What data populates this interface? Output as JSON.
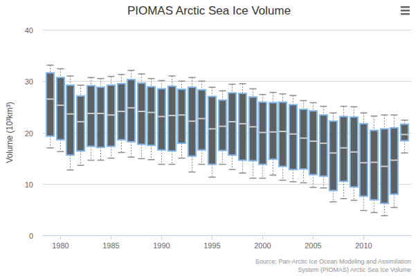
{
  "chart_data": {
    "type": "boxplot",
    "title": "PIOMAS Arctic Sea Ice Volume",
    "y_label": "Volume (10³km³)",
    "source": [
      "Source: Pan-Arctic Ice Ocean Modeling and Assimilation",
      "System (PIOMAS) Arctic Sea Ice Volume"
    ],
    "x": [
      1979,
      1980,
      1981,
      1982,
      1983,
      1984,
      1985,
      1986,
      1987,
      1988,
      1989,
      1990,
      1991,
      1992,
      1993,
      1994,
      1995,
      1996,
      1997,
      1998,
      1999,
      2000,
      2001,
      2002,
      2003,
      2004,
      2005,
      2006,
      2007,
      2008,
      2009,
      2010,
      2011,
      2012,
      2013,
      2014
    ],
    "high": [
      33.1,
      32.4,
      31.0,
      29.2,
      30.7,
      30.5,
      30.9,
      31.3,
      32.1,
      31.4,
      30.5,
      30.1,
      31.0,
      30.0,
      30.7,
      30.0,
      28.8,
      28.1,
      29.4,
      29.5,
      28.5,
      27.4,
      27.8,
      27.5,
      27.2,
      26.2,
      25.8,
      25.1,
      23.8,
      25.1,
      25.0,
      23.8,
      23.2,
      23.4,
      23.4,
      22.4
    ],
    "q3": [
      31.6,
      30.7,
      29.2,
      27.1,
      29.1,
      28.8,
      29.2,
      29.5,
      30.3,
      29.6,
      28.9,
      28.5,
      29.0,
      28.4,
      28.8,
      28.3,
      27.0,
      26.3,
      27.7,
      27.6,
      26.9,
      25.9,
      25.8,
      25.9,
      25.4,
      24.5,
      24.2,
      23.4,
      22.2,
      23.1,
      23.0,
      21.7,
      20.4,
      20.7,
      20.9,
      21.6
    ],
    "median": [
      26.5,
      25.3,
      23.6,
      22.1,
      23.7,
      23.7,
      23.4,
      24.1,
      24.8,
      24.1,
      23.9,
      23.1,
      23.3,
      23.4,
      22.2,
      22.7,
      20.7,
      21.2,
      22.1,
      21.7,
      21.1,
      20.0,
      20.1,
      20.2,
      19.7,
      18.9,
      18.3,
      17.9,
      16.0,
      17.0,
      16.2,
      14.1,
      14.2,
      13.4,
      14.6,
      19.6
    ],
    "q1": [
      19.3,
      18.6,
      15.6,
      16.4,
      17.3,
      17.1,
      17.3,
      18.6,
      18.2,
      17.7,
      17.5,
      16.6,
      16.4,
      17.9,
      15.4,
      16.6,
      13.8,
      16.5,
      15.6,
      14.6,
      14.5,
      13.8,
      14.8,
      13.4,
      12.8,
      12.9,
      11.8,
      11.5,
      8.7,
      10.5,
      9.4,
      7.6,
      6.9,
      6.2,
      8.0,
      18.4
    ],
    "low": [
      17.0,
      16.3,
      12.7,
      13.6,
      14.6,
      14.6,
      15.0,
      16.1,
      15.2,
      14.9,
      14.7,
      13.8,
      13.8,
      15.0,
      12.3,
      13.8,
      11.3,
      13.8,
      12.8,
      12.1,
      11.1,
      11.1,
      11.7,
      10.7,
      10.4,
      10.2,
      9.3,
      9.2,
      6.5,
      7.1,
      6.8,
      4.8,
      4.4,
      3.8,
      5.4,
      16.0
    ],
    "color": "#606060",
    "xlim": [
      1978.3,
      2014.7
    ],
    "xticks": [
      1980,
      1985,
      1990,
      1995,
      2000,
      2005,
      2010
    ],
    "ylim": [
      0,
      40
    ],
    "yticks": [
      0,
      10,
      20,
      30,
      40
    ],
    "grid": true
  }
}
